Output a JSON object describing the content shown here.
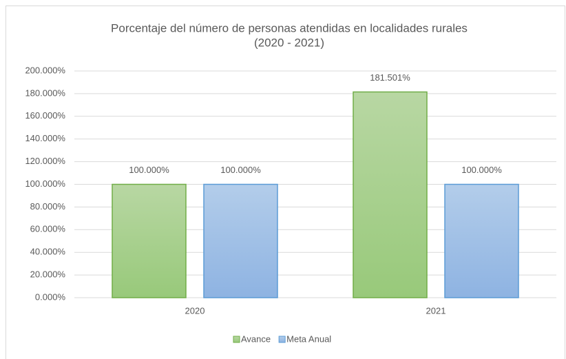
{
  "chart_data": {
    "type": "bar",
    "title": "Porcentaje del número de personas atendidas en localidades rurales",
    "subtitle": "(2020 - 2021)",
    "categories": [
      "2020",
      "2021"
    ],
    "series": [
      {
        "name": "Avance",
        "color": "#70ad47",
        "values": [
          100,
          181.501
        ],
        "value_labels": [
          "100.000%",
          "181.501%"
        ]
      },
      {
        "name": "Meta Anual",
        "color": "#5b9bd5",
        "values": [
          100,
          100
        ],
        "value_labels": [
          "100.000%",
          "100.000%"
        ]
      }
    ],
    "ylim": [
      0,
      200
    ],
    "yticks": [
      {
        "value": 0,
        "label": "0.000%"
      },
      {
        "value": 20,
        "label": "20.000%"
      },
      {
        "value": 40,
        "label": "40.000%"
      },
      {
        "value": 60,
        "label": "60.000%"
      },
      {
        "value": 80,
        "label": "80.000%"
      },
      {
        "value": 100,
        "label": "100.000%"
      },
      {
        "value": 120,
        "label": "120.000%"
      },
      {
        "value": 140,
        "label": "140.000%"
      },
      {
        "value": 160,
        "label": "160.000%"
      },
      {
        "value": 180,
        "label": "180.000%"
      },
      {
        "value": 200,
        "label": "200.000%"
      }
    ],
    "grid": true,
    "legend": "bottom"
  }
}
